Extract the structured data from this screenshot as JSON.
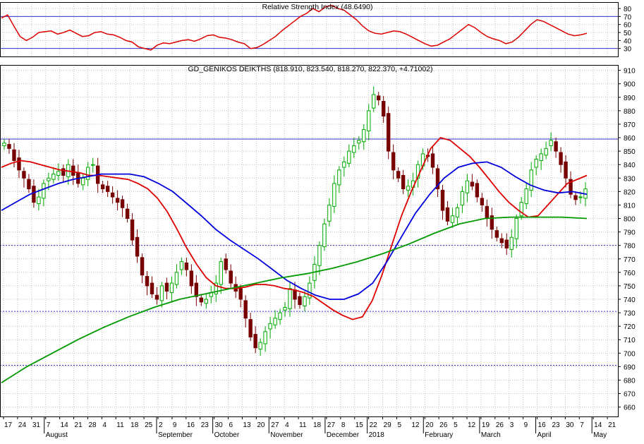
{
  "chart_data": [
    {
      "type": "line",
      "title": "Relative Strength Index (48.6490)",
      "ylim": [
        20,
        88
      ],
      "yticks": [
        30,
        40,
        50,
        60,
        70,
        80
      ],
      "hlines": [
        30,
        70
      ],
      "grid": true,
      "series": [
        {
          "color": "#dd0000",
          "values": [
            68,
            72,
            58,
            45,
            40,
            44,
            50,
            51,
            52,
            48,
            50,
            53,
            49,
            45,
            46,
            50,
            51,
            48,
            47,
            44,
            40,
            38,
            32,
            30,
            28,
            34,
            37,
            36,
            38,
            40,
            41,
            39,
            42,
            46,
            47,
            44,
            43,
            41,
            38,
            36,
            30,
            31,
            35,
            40,
            45,
            52,
            58,
            64,
            70,
            74,
            80,
            76,
            82,
            84,
            80,
            78,
            72,
            66,
            58,
            52,
            49,
            48,
            50,
            52,
            51,
            48,
            44,
            40,
            36,
            33,
            34,
            38,
            42,
            48,
            54,
            60,
            56,
            50,
            45,
            42,
            40,
            36,
            38,
            44,
            52,
            60,
            66,
            64,
            60,
            56,
            52,
            48,
            46,
            47,
            49
          ]
        }
      ]
    },
    {
      "type": "candlestick",
      "title": "GD_GENIKOS DEIKTHS (818.910, 823.540, 818.270, 822.370, +4.71002)",
      "ylim": [
        653,
        914
      ],
      "yticks": [
        660,
        670,
        680,
        690,
        700,
        710,
        720,
        730,
        740,
        750,
        760,
        770,
        780,
        790,
        800,
        810,
        820,
        830,
        840,
        850,
        860,
        870,
        880,
        890,
        900,
        910
      ],
      "hlines": [
        859,
        780,
        731,
        691
      ],
      "grid": true,
      "x_labels": [
        "17",
        "24",
        "31",
        "7",
        "14",
        "21",
        "28",
        "4",
        "11",
        "18",
        "25",
        "2",
        "9",
        "16",
        "23",
        "30",
        "6",
        "13",
        "20",
        "27",
        "4",
        "11",
        "18",
        "27",
        "8",
        "15",
        "22",
        "29",
        "5",
        "12",
        "20",
        "26",
        "5",
        "12",
        "19",
        "26",
        "3",
        "9",
        "16",
        "23",
        "30",
        "7",
        "14",
        "21"
      ],
      "month_labels": [
        "August",
        "September",
        "October",
        "November",
        "December",
        "2018",
        "February",
        "March",
        "April",
        "May"
      ],
      "series": [
        {
          "name": "close",
          "color": "#000000",
          "values": [
            856,
            852,
            843,
            836,
            830,
            822,
            812,
            816,
            826,
            830,
            833,
            835,
            832,
            840,
            832,
            826,
            830,
            838,
            840,
            826,
            822,
            820,
            816,
            812,
            808,
            800,
            784,
            772,
            758,
            750,
            744,
            740,
            750,
            746,
            752,
            760,
            768,
            762,
            750,
            742,
            738,
            740,
            745,
            752,
            768,
            762,
            752,
            746,
            740,
            726,
            712,
            704,
            708,
            716,
            722,
            726,
            730,
            734,
            748,
            740,
            736,
            742,
            752,
            766,
            780,
            796,
            810,
            826,
            836,
            842,
            850,
            854,
            858,
            866,
            880,
            892,
            888,
            876,
            850,
            836,
            830,
            822,
            824,
            828,
            840,
            848,
            846,
            838,
            822,
            806,
            798,
            802,
            808,
            820,
            828,
            824,
            816,
            810,
            800,
            792,
            786,
            782,
            778,
            786,
            800,
            812,
            822,
            836,
            844,
            848,
            852,
            858,
            850,
            840,
            830,
            818,
            814,
            816,
            822
          ]
        },
        {
          "name": "ma-short",
          "color": "#dd0000",
          "values": [
            838,
            841,
            843,
            842,
            840,
            838,
            836,
            835,
            834,
            832,
            832,
            831,
            830,
            829,
            826,
            822,
            815,
            805,
            792,
            778,
            766,
            756,
            750,
            748,
            748,
            749,
            751,
            751,
            750,
            748,
            747,
            745,
            742,
            737,
            732,
            728,
            725,
            727,
            739,
            758,
            780,
            802,
            820,
            836,
            852,
            860,
            858,
            852,
            846,
            838,
            829,
            820,
            812,
            806,
            801,
            802,
            810,
            818,
            826,
            829,
            832
          ]
        },
        {
          "name": "ma-mid",
          "color": "#0000dd",
          "values": [
            806,
            812,
            818,
            822,
            826,
            829,
            831,
            833,
            833,
            833,
            831,
            826,
            820,
            811,
            802,
            792,
            784,
            777,
            770,
            762,
            754,
            748,
            743,
            740,
            740,
            744,
            752,
            768,
            786,
            804,
            818,
            830,
            838,
            841,
            842,
            838,
            831,
            825,
            821,
            819,
            820,
            818
          ]
        },
        {
          "name": "ma-long",
          "color": "#009900",
          "values": [
            678,
            690,
            700,
            710,
            719,
            727,
            734,
            740,
            744,
            748,
            752,
            756,
            759,
            763,
            768,
            774,
            781,
            789,
            796,
            800,
            801,
            801,
            801,
            800
          ]
        }
      ]
    }
  ]
}
